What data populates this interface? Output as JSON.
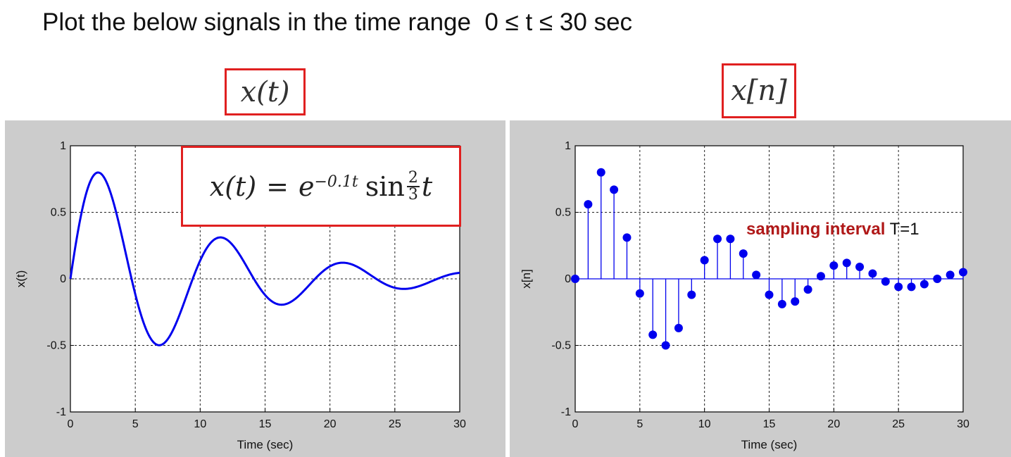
{
  "heading": "Plot the below signals in the time range  0 ≤ t ≤ 30 sec",
  "labels": {
    "left": "x(t)",
    "right": "x[n]"
  },
  "formula": {
    "lhs": "x(t)",
    "eq": "=",
    "base": "e",
    "exponent": "−0.1t",
    "func": "sin",
    "frac_num": "2",
    "frac_den": "3",
    "var": "t"
  },
  "annotation": {
    "red": "sampling interval",
    "black": " T=1"
  },
  "colors": {
    "line": "#0000ee",
    "stem": "#0000ee",
    "box": "#e02020",
    "annotation": "#b01818",
    "panel_bg": "#cccccc"
  },
  "chart_data": [
    {
      "type": "line",
      "xlabel": "Time (sec)",
      "ylabel": "x(t)",
      "xlim": [
        0,
        30
      ],
      "ylim": [
        -1,
        1
      ],
      "xticks": [
        "0",
        "5",
        "10",
        "15",
        "20",
        "25",
        "30"
      ],
      "yticks": [
        "-1",
        "-0.5",
        "0",
        "0.5",
        "1"
      ],
      "grid": "dashed",
      "series": [
        {
          "function": "exp(-0.1*t)*sin(2*t/3)",
          "x_range": [
            0,
            30
          ]
        }
      ]
    },
    {
      "type": "stem",
      "xlabel": "Time (sec)",
      "ylabel": "x[n]",
      "xlim": [
        0,
        30
      ],
      "ylim": [
        -1,
        1
      ],
      "xticks": [
        "0",
        "5",
        "10",
        "15",
        "20",
        "25",
        "30"
      ],
      "yticks": [
        "-1",
        "-0.5",
        "0",
        "0.5",
        "1"
      ],
      "grid": "dashed",
      "x": [
        0,
        1,
        2,
        3,
        4,
        5,
        6,
        7,
        8,
        9,
        10,
        11,
        12,
        13,
        14,
        15,
        16,
        17,
        18,
        19,
        20,
        21,
        22,
        23,
        24,
        25,
        26,
        27,
        28,
        29,
        30
      ],
      "values": [
        0,
        0.56,
        0.8,
        0.67,
        0.31,
        -0.11,
        -0.42,
        -0.5,
        -0.37,
        -0.12,
        0.14,
        0.3,
        0.3,
        0.19,
        0.03,
        -0.12,
        -0.19,
        -0.17,
        -0.08,
        0.02,
        0.1,
        0.12,
        0.09,
        0.04,
        -0.02,
        -0.06,
        -0.06,
        -0.04,
        0.0,
        0.03,
        0.05
      ]
    }
  ]
}
